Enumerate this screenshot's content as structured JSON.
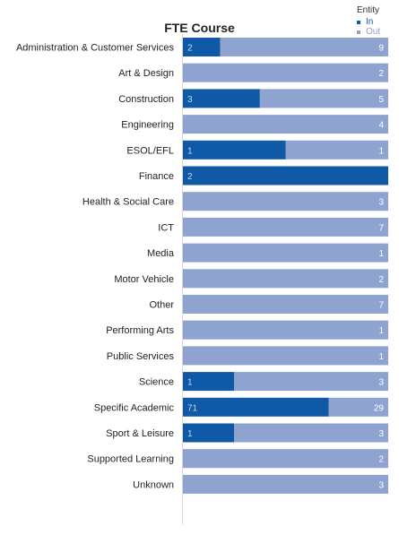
{
  "chart_data": {
    "type": "bar",
    "orientation": "horizontal",
    "stacking": "percent",
    "title": "FTE Course",
    "legend": {
      "title": "Entity",
      "position": "top-right"
    },
    "categories": [
      "Administration & Customer Services",
      "Art & Design",
      "Construction",
      "Engineering",
      "ESOL/EFL",
      "Finance",
      "Health & Social Care",
      "ICT",
      "Media",
      "Motor Vehicle",
      "Other",
      "Performing Arts",
      "Public Services",
      "Science",
      "Specific Academic",
      "Sport & Leisure",
      "Supported Learning",
      "Unknown"
    ],
    "series": [
      {
        "name": "In",
        "color": "#1059a6",
        "text_color": "#bfdcf2",
        "legend_color": "#1059a6",
        "values": [
          2,
          null,
          3,
          null,
          1,
          2,
          null,
          null,
          null,
          null,
          null,
          null,
          null,
          1,
          71,
          1,
          null,
          null
        ]
      },
      {
        "name": "Out",
        "color": "#8ea3cf",
        "text_color": "#ffffff",
        "legend_color": "#8ea3cf",
        "values": [
          9,
          2,
          5,
          4,
          1,
          null,
          3,
          7,
          1,
          2,
          7,
          1,
          1,
          3,
          29,
          3,
          2,
          3
        ]
      }
    ],
    "grid": false
  }
}
